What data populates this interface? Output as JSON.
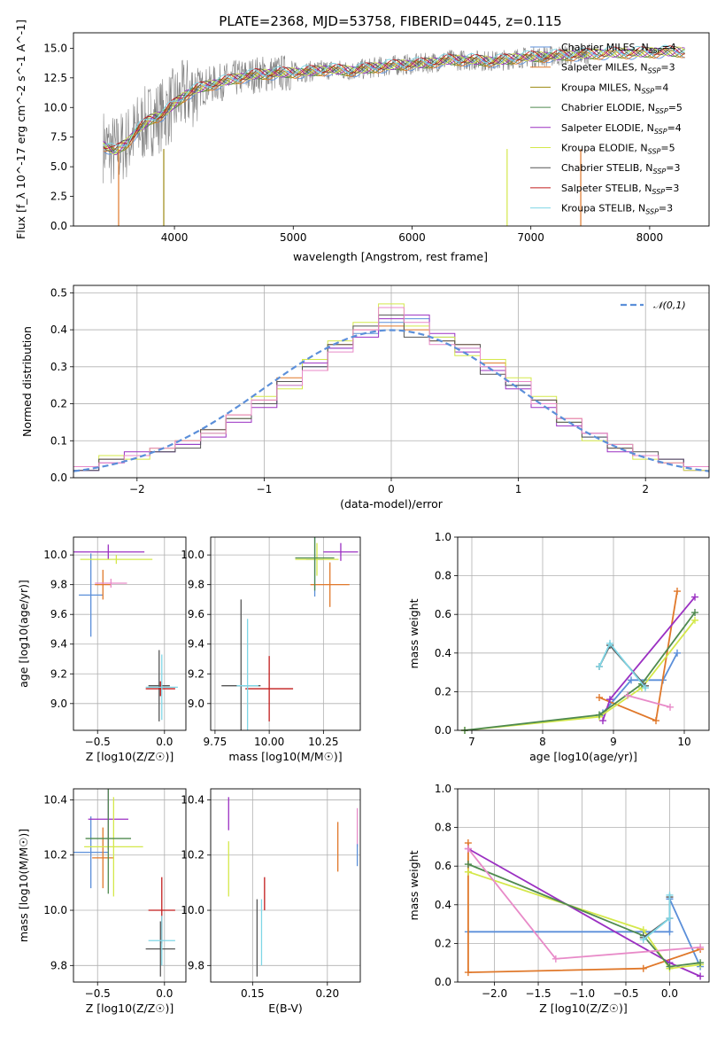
{
  "figure": {
    "title": "PLATE=2368, MJD=53758, FIBERID=0445, z=0.115"
  },
  "legend_entries": [
    {
      "label": "Chabrier MILES, N",
      "sub": "SSP",
      "suffix": "=4",
      "color": "#5b8fd9"
    },
    {
      "label": "Salpeter MILES, N",
      "sub": "SSP",
      "suffix": "=3",
      "color": "#e0782a"
    },
    {
      "label": "Kroupa MILES, N",
      "sub": "SSP",
      "suffix": "=4",
      "color": "#9c8a12"
    },
    {
      "label": "Chabrier ELODIE, N",
      "sub": "SSP",
      "suffix": "=5",
      "color": "#4f8a4f"
    },
    {
      "label": "Salpeter ELODIE, N",
      "sub": "SSP",
      "suffix": "=4",
      "color": "#9b30c2"
    },
    {
      "label": "Kroupa ELODIE, N",
      "sub": "SSP",
      "suffix": "=5",
      "color": "#d4e84a"
    },
    {
      "label": "Chabrier STELIB, N",
      "sub": "SSP",
      "suffix": "=3",
      "color": "#555555"
    },
    {
      "label": "Salpeter STELIB, N",
      "sub": "SSP",
      "suffix": "=3",
      "color": "#c21c1c"
    },
    {
      "label": "Kroupa STELIB, N",
      "sub": "SSP",
      "suffix": "=3",
      "color": "#7fd6e6"
    }
  ],
  "chart_data": [
    {
      "type": "line",
      "panel": "spectrum",
      "title": "PLATE=2368, MJD=53758, FIBERID=0445, z=0.115",
      "xlabel": "wavelength [Angstrom, rest frame]",
      "ylabel": "Flux [f_λ 10^-17 erg cm^-2 s^-1 A^-1]",
      "xlim": [
        3150,
        8500
      ],
      "ylim": [
        0,
        16.3
      ],
      "xticks": [
        4000,
        5000,
        6000,
        7000,
        8000
      ],
      "yticks": [
        0.0,
        2.5,
        5.0,
        7.5,
        10.0,
        12.5,
        15.0
      ],
      "data_color": "#808080",
      "observed": {
        "x": [
          3400,
          3500,
          3600,
          3700,
          3800,
          3900,
          4000,
          4100,
          4200,
          4300,
          4500,
          4700,
          4900,
          5100,
          5300,
          5500,
          5700,
          5900,
          6100,
          6300,
          6500,
          6700,
          6900,
          7100,
          7300,
          7500
        ],
        "y": [
          6.8,
          6.3,
          7.0,
          8.2,
          9.0,
          9.4,
          10.3,
          11.1,
          11.6,
          11.9,
          12.4,
          12.8,
          12.9,
          13.0,
          13.2,
          13.1,
          13.4,
          13.6,
          13.7,
          14.0,
          14.0,
          13.9,
          14.2,
          14.3,
          14.4,
          14.5
        ]
      },
      "model": {
        "x": [
          3400,
          3500,
          3600,
          3700,
          3800,
          3900,
          4000,
          4100,
          4200,
          4300,
          4500,
          4700,
          4900,
          5100,
          5300,
          5500,
          5700,
          5900,
          6100,
          6300,
          6500,
          6700,
          6900,
          7100,
          7300,
          7500,
          7700,
          7900,
          8100,
          8300
        ],
        "y": [
          6.8,
          6.3,
          7.0,
          8.2,
          9.0,
          9.4,
          10.3,
          11.1,
          11.6,
          11.9,
          12.4,
          12.8,
          12.9,
          13.0,
          13.2,
          13.1,
          13.4,
          13.6,
          13.7,
          14.0,
          14.0,
          13.9,
          14.2,
          14.3,
          14.4,
          14.5,
          14.6,
          14.6,
          14.7,
          14.7
        ]
      },
      "legend_position": "right"
    },
    {
      "type": "histogram",
      "panel": "residuals",
      "xlabel": "(data-model)/error",
      "ylabel": "Normed distribution",
      "xlim": [
        -2.5,
        2.5
      ],
      "ylim": [
        0,
        0.52
      ],
      "xticks": [
        -2,
        -1,
        0,
        1,
        2
      ],
      "yticks": [
        0.0,
        0.1,
        0.2,
        0.3,
        0.4,
        0.5
      ],
      "reference": {
        "name": "𝒩(0,1)",
        "color": "#5b8fd9",
        "style": "dashed"
      },
      "bins": [
        -2.5,
        -2.3,
        -2.1,
        -1.9,
        -1.7,
        -1.5,
        -1.3,
        -1.1,
        -0.9,
        -0.7,
        -0.5,
        -0.3,
        -0.1,
        0.1,
        0.3,
        0.5,
        0.7,
        0.9,
        1.1,
        1.3,
        1.5,
        1.7,
        1.9,
        2.1,
        2.3,
        2.5
      ],
      "series": [
        {
          "color": "#5b8fd9",
          "values": [
            0.02,
            0.05,
            0.06,
            0.07,
            0.09,
            0.12,
            0.16,
            0.2,
            0.25,
            0.3,
            0.35,
            0.39,
            0.42,
            0.43,
            0.38,
            0.35,
            0.3,
            0.25,
            0.2,
            0.15,
            0.11,
            0.09,
            0.06,
            0.05,
            0.03
          ]
        },
        {
          "color": "#e0782a",
          "values": [
            0.03,
            0.05,
            0.06,
            0.08,
            0.1,
            0.13,
            0.17,
            0.21,
            0.27,
            0.29,
            0.36,
            0.4,
            0.41,
            0.4,
            0.37,
            0.36,
            0.31,
            0.26,
            0.21,
            0.16,
            0.12,
            0.08,
            0.06,
            0.04,
            0.03
          ]
        },
        {
          "color": "#9b30c2",
          "values": [
            0.02,
            0.04,
            0.07,
            0.07,
            0.09,
            0.11,
            0.15,
            0.19,
            0.26,
            0.31,
            0.35,
            0.38,
            0.43,
            0.44,
            0.39,
            0.34,
            0.29,
            0.24,
            0.19,
            0.14,
            0.12,
            0.07,
            0.06,
            0.05,
            0.02
          ]
        },
        {
          "color": "#d4e84a",
          "values": [
            0.03,
            0.06,
            0.05,
            0.08,
            0.1,
            0.12,
            0.16,
            0.22,
            0.24,
            0.32,
            0.37,
            0.42,
            0.47,
            0.41,
            0.38,
            0.33,
            0.32,
            0.27,
            0.22,
            0.15,
            0.1,
            0.09,
            0.05,
            0.04,
            0.02
          ]
        },
        {
          "color": "#555555",
          "values": [
            0.02,
            0.05,
            0.06,
            0.07,
            0.08,
            0.13,
            0.16,
            0.2,
            0.26,
            0.3,
            0.36,
            0.41,
            0.44,
            0.38,
            0.37,
            0.36,
            0.28,
            0.25,
            0.21,
            0.15,
            0.11,
            0.08,
            0.07,
            0.05,
            0.03
          ]
        },
        {
          "color": "#e88ac8",
          "values": [
            0.03,
            0.04,
            0.06,
            0.08,
            0.1,
            0.12,
            0.17,
            0.21,
            0.25,
            0.29,
            0.34,
            0.4,
            0.46,
            0.42,
            0.36,
            0.35,
            0.3,
            0.26,
            0.2,
            0.16,
            0.12,
            0.09,
            0.06,
            0.04,
            0.03
          ]
        }
      ]
    },
    {
      "type": "scatter",
      "panel": "age_vs_Z",
      "xlabel": "Z [log10(Z/Z☉)]",
      "ylabel": "age [log10(age/yr)]",
      "xlim": [
        -0.68,
        0.16
      ],
      "ylim": [
        8.82,
        10.12
      ],
      "xticks": [
        -0.5,
        0.0
      ],
      "yticks": [
        9.0,
        9.2,
        9.4,
        9.6,
        9.8,
        10.0
      ],
      "points": [
        {
          "color": "#5b8fd9",
          "x": -0.55,
          "y": 9.73,
          "xerr": 0.09,
          "yerr": 0.28
        },
        {
          "color": "#e0782a",
          "x": -0.46,
          "y": 9.8,
          "xerr": 0.06,
          "yerr": 0.1
        },
        {
          "color": "#9b30c2",
          "x": -0.42,
          "y": 10.02,
          "xerr": 0.27,
          "yerr": 0.05
        },
        {
          "color": "#d4e84a",
          "x": -0.36,
          "y": 9.97,
          "xerr": 0.27,
          "yerr": 0.03
        },
        {
          "color": "#e88ac8",
          "x": -0.4,
          "y": 9.81,
          "xerr": 0.12,
          "yerr": 0.03
        },
        {
          "color": "#555555",
          "x": -0.04,
          "y": 9.12,
          "xerr": 0.08,
          "yerr": 0.24
        },
        {
          "color": "#c21c1c",
          "x": -0.03,
          "y": 9.1,
          "xerr": 0.11,
          "yerr": 0.05
        },
        {
          "color": "#7fd6e6",
          "x": -0.02,
          "y": 9.11,
          "xerr": 0.12,
          "yerr": 0.22
        }
      ]
    },
    {
      "type": "scatter",
      "panel": "age_vs_mass",
      "xlabel": "mass [log10(M/M☉)]",
      "ylabel": "",
      "xlim": [
        9.73,
        10.42
      ],
      "ylim": [
        8.82,
        10.12
      ],
      "xticks": [
        9.75,
        10.0,
        10.25
      ],
      "yticks": [
        9.0,
        9.2,
        9.4,
        9.6,
        9.8,
        10.0
      ],
      "points": [
        {
          "color": "#5b8fd9",
          "x": 10.21,
          "y": 9.97,
          "xerr": 0.04,
          "yerr": 0.25
        },
        {
          "color": "#e0782a",
          "x": 10.28,
          "y": 9.8,
          "xerr": 0.09,
          "yerr": 0.15
        },
        {
          "color": "#9b30c2",
          "x": 10.33,
          "y": 10.02,
          "xerr": 0.08,
          "yerr": 0.06
        },
        {
          "color": "#d4e84a",
          "x": 10.22,
          "y": 9.97,
          "xerr": 0.1,
          "yerr": 0.11
        },
        {
          "color": "#4f8a4f",
          "x": 10.21,
          "y": 9.98,
          "xerr": 0.09,
          "yerr": 0.22
        },
        {
          "color": "#555555",
          "x": 9.87,
          "y": 9.12,
          "xerr": 0.09,
          "yerr": 0.58
        },
        {
          "color": "#c21c1c",
          "x": 10.0,
          "y": 9.1,
          "xerr": 0.11,
          "yerr": 0.22
        },
        {
          "color": "#7fd6e6",
          "x": 9.9,
          "y": 9.12,
          "xerr": 0.05,
          "yerr": 0.45
        }
      ]
    },
    {
      "type": "line",
      "panel": "massweight_vs_age",
      "xlabel": "age [log10(age/yr)]",
      "ylabel": "mass weight",
      "xlim": [
        6.8,
        10.35
      ],
      "ylim": [
        0,
        1.0
      ],
      "xticks": [
        7,
        8,
        9,
        10
      ],
      "yticks": [
        0.0,
        0.2,
        0.4,
        0.6,
        0.8,
        1.0
      ],
      "series": [
        {
          "color": "#5b8fd9",
          "x": [
            8.85,
            9.25,
            9.7,
            9.9
          ],
          "y": [
            0.09,
            0.26,
            0.26,
            0.4
          ]
        },
        {
          "color": "#e0782a",
          "x": [
            8.8,
            9.6,
            9.9
          ],
          "y": [
            0.17,
            0.05,
            0.72
          ]
        },
        {
          "color": "#9b30c2",
          "x": [
            8.85,
            8.95,
            10.15
          ],
          "y": [
            0.05,
            0.16,
            0.69
          ]
        },
        {
          "color": "#d4e84a",
          "x": [
            6.9,
            8.8,
            9.4,
            10.15
          ],
          "y": [
            0.0,
            0.07,
            0.22,
            0.57
          ]
        },
        {
          "color": "#4f8a4f",
          "x": [
            6.9,
            8.8,
            9.4,
            10.15
          ],
          "y": [
            0.0,
            0.08,
            0.24,
            0.61
          ]
        },
        {
          "color": "#e88ac8",
          "x": [
            9.2,
            9.8
          ],
          "y": [
            0.18,
            0.12
          ]
        },
        {
          "color": "#555555",
          "x": [
            8.8,
            8.95,
            9.45
          ],
          "y": [
            0.33,
            0.44,
            0.23
          ]
        },
        {
          "color": "#7fd6e6",
          "x": [
            8.8,
            8.95,
            9.45
          ],
          "y": [
            0.33,
            0.45,
            0.22
          ]
        }
      ]
    },
    {
      "type": "scatter",
      "panel": "mass_vs_Z",
      "xlabel": "Z [log10(Z/Z☉)]",
      "ylabel": "mass [log10(M/M☉)]",
      "xlim": [
        -0.68,
        0.16
      ],
      "ylim": [
        9.74,
        10.44
      ],
      "xticks": [
        -0.5,
        0.0
      ],
      "yticks": [
        9.8,
        10.0,
        10.2,
        10.4
      ],
      "points": [
        {
          "color": "#5b8fd9",
          "x": -0.55,
          "y": 10.21,
          "xerr": 0.13,
          "yerr": 0.13
        },
        {
          "color": "#e0782a",
          "x": -0.46,
          "y": 10.19,
          "xerr": 0.08,
          "yerr": 0.11
        },
        {
          "color": "#9b30c2",
          "x": -0.42,
          "y": 10.33,
          "xerr": 0.15,
          "yerr": 0.11
        },
        {
          "color": "#d4e84a",
          "x": -0.38,
          "y": 10.23,
          "xerr": 0.22,
          "yerr": 0.18
        },
        {
          "color": "#4f8a4f",
          "x": -0.42,
          "y": 10.26,
          "xerr": 0.17,
          "yerr": 0.2
        },
        {
          "color": "#555555",
          "x": -0.03,
          "y": 9.86,
          "xerr": 0.11,
          "yerr": 0.1
        },
        {
          "color": "#c21c1c",
          "x": -0.02,
          "y": 10.0,
          "xerr": 0.1,
          "yerr": 0.12
        },
        {
          "color": "#7fd6e6",
          "x": -0.02,
          "y": 9.89,
          "xerr": 0.1,
          "yerr": 0.09
        }
      ]
    },
    {
      "type": "scatter",
      "panel": "mass_vs_EBV",
      "xlabel": "E(B-V)",
      "ylabel": "",
      "xlim": [
        0.122,
        0.222
      ],
      "ylim": [
        9.74,
        10.44
      ],
      "xticks": [
        0.15,
        0.2
      ],
      "yticks": [
        9.8,
        10.0,
        10.2,
        10.4
      ],
      "points": [
        {
          "color": "#9b30c2",
          "x": 0.134,
          "y": 10.35,
          "yerr": 0.06
        },
        {
          "color": "#d4e84a",
          "x": 0.134,
          "y": 10.15,
          "yerr": 0.1
        },
        {
          "color": "#555555",
          "x": 0.153,
          "y": 9.9,
          "yerr": 0.14
        },
        {
          "color": "#7fd6e6",
          "x": 0.156,
          "y": 9.92,
          "yerr": 0.12
        },
        {
          "color": "#c21c1c",
          "x": 0.158,
          "y": 10.06,
          "yerr": 0.06
        },
        {
          "color": "#e0782a",
          "x": 0.207,
          "y": 10.23,
          "yerr": 0.09
        },
        {
          "color": "#e88ac8",
          "x": 0.22,
          "y": 10.3,
          "yerr": 0.07
        },
        {
          "color": "#5b8fd9",
          "x": 0.22,
          "y": 10.2,
          "yerr": 0.04
        }
      ]
    },
    {
      "type": "line",
      "panel": "massweight_vs_Z",
      "xlabel": "Z [log10(Z/Z☉)]",
      "ylabel": "mass weight",
      "xlim": [
        -2.42,
        0.45
      ],
      "ylim": [
        0,
        1.0
      ],
      "xticks": [
        -2.0,
        -1.5,
        -1.0,
        -0.5,
        0.0
      ],
      "yticks": [
        0.0,
        0.2,
        0.4,
        0.6,
        0.8,
        1.0
      ],
      "series": [
        {
          "color": "#5b8fd9",
          "x": [
            -2.3,
            0.0,
            0.0,
            0.35
          ],
          "y": [
            0.26,
            0.26,
            0.43,
            0.08
          ]
        },
        {
          "color": "#e0782a",
          "x": [
            -2.3,
            -2.3,
            -0.3,
            0.35
          ],
          "y": [
            0.72,
            0.05,
            0.07,
            0.17
          ]
        },
        {
          "color": "#9b30c2",
          "x": [
            -2.3,
            0.0,
            0.35
          ],
          "y": [
            0.69,
            0.1,
            0.03
          ]
        },
        {
          "color": "#d4e84a",
          "x": [
            -2.3,
            -0.3,
            0.0,
            0.35
          ],
          "y": [
            0.57,
            0.27,
            0.07,
            0.09
          ]
        },
        {
          "color": "#4f8a4f",
          "x": [
            -2.3,
            -0.3,
            0.0,
            0.35
          ],
          "y": [
            0.61,
            0.24,
            0.08,
            0.1
          ]
        },
        {
          "color": "#e88ac8",
          "x": [
            -2.3,
            -1.3,
            0.35
          ],
          "y": [
            0.69,
            0.12,
            0.18
          ]
        },
        {
          "color": "#555555",
          "x": [
            -0.3,
            0.0,
            0.0
          ],
          "y": [
            0.23,
            0.33,
            0.44
          ]
        },
        {
          "color": "#7fd6e6",
          "x": [
            -0.3,
            0.0,
            0.0
          ],
          "y": [
            0.22,
            0.33,
            0.45
          ]
        }
      ]
    }
  ]
}
